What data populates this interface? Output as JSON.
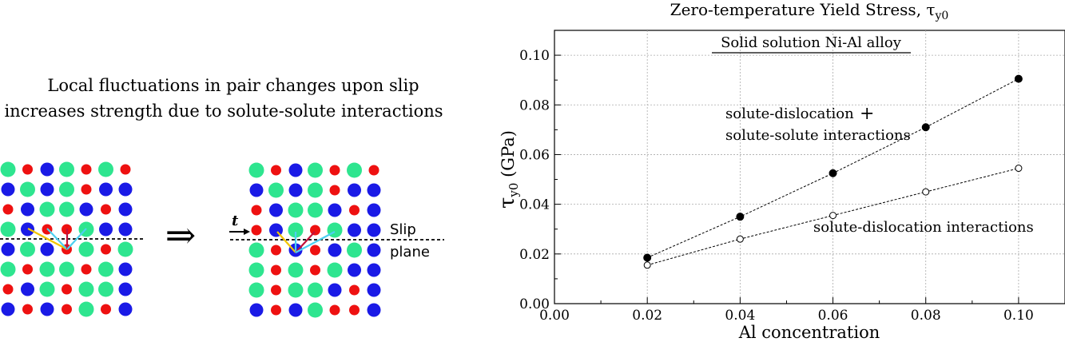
{
  "left_panel": {
    "caption_line1": "Local fluctuations in pair changes upon slip",
    "caption_line2": "increases strength due to solute-solute interactions",
    "arrow_symbol": "⇒",
    "t_label": "t",
    "slip_label": "Slip",
    "plane_label": "plane",
    "colors": {
      "green": "#2ee58f",
      "red": "#ee1111",
      "blue": "#1a1ae6",
      "yellow": "#f2c400",
      "cyan": "#4dd0f0",
      "crimson": "#c0103a"
    }
  },
  "chart_data": {
    "type": "line",
    "title_prefix": "Zero-temperature Yield Stress, ",
    "title_symbol": "τ",
    "title_sub": "y0",
    "inset_label": "Solid solution Ni-Al alloy",
    "xlabel": "Al concentration",
    "ylabel_symbol": "τ",
    "ylabel_sub": "y0",
    "ylabel_unit": " (GPa)",
    "xlim": [
      0.0,
      0.11
    ],
    "ylim": [
      0.0,
      0.11
    ],
    "x_ticks": [
      "0.00",
      "0.02",
      "0.04",
      "0.06",
      "0.08",
      "0.10"
    ],
    "y_ticks": [
      "0.00",
      "0.02",
      "0.04",
      "0.06",
      "0.08",
      "0.10"
    ],
    "grid": true,
    "series": [
      {
        "name": "solute-dislocation + solute-solute interactions",
        "label_line1": "solute-dislocation",
        "label_plus": "+",
        "label_line2": "solute-solute interactions",
        "marker": "filled",
        "x": [
          0.02,
          0.04,
          0.06,
          0.08,
          0.1
        ],
        "y": [
          0.0185,
          0.035,
          0.0525,
          0.071,
          0.0905
        ]
      },
      {
        "name": "solute-dislocation interactions",
        "label_line1": "solute-dislocation interactions",
        "marker": "open",
        "x": [
          0.02,
          0.04,
          0.06,
          0.08,
          0.1
        ],
        "y": [
          0.0155,
          0.026,
          0.0355,
          0.045,
          0.0545
        ]
      }
    ]
  }
}
